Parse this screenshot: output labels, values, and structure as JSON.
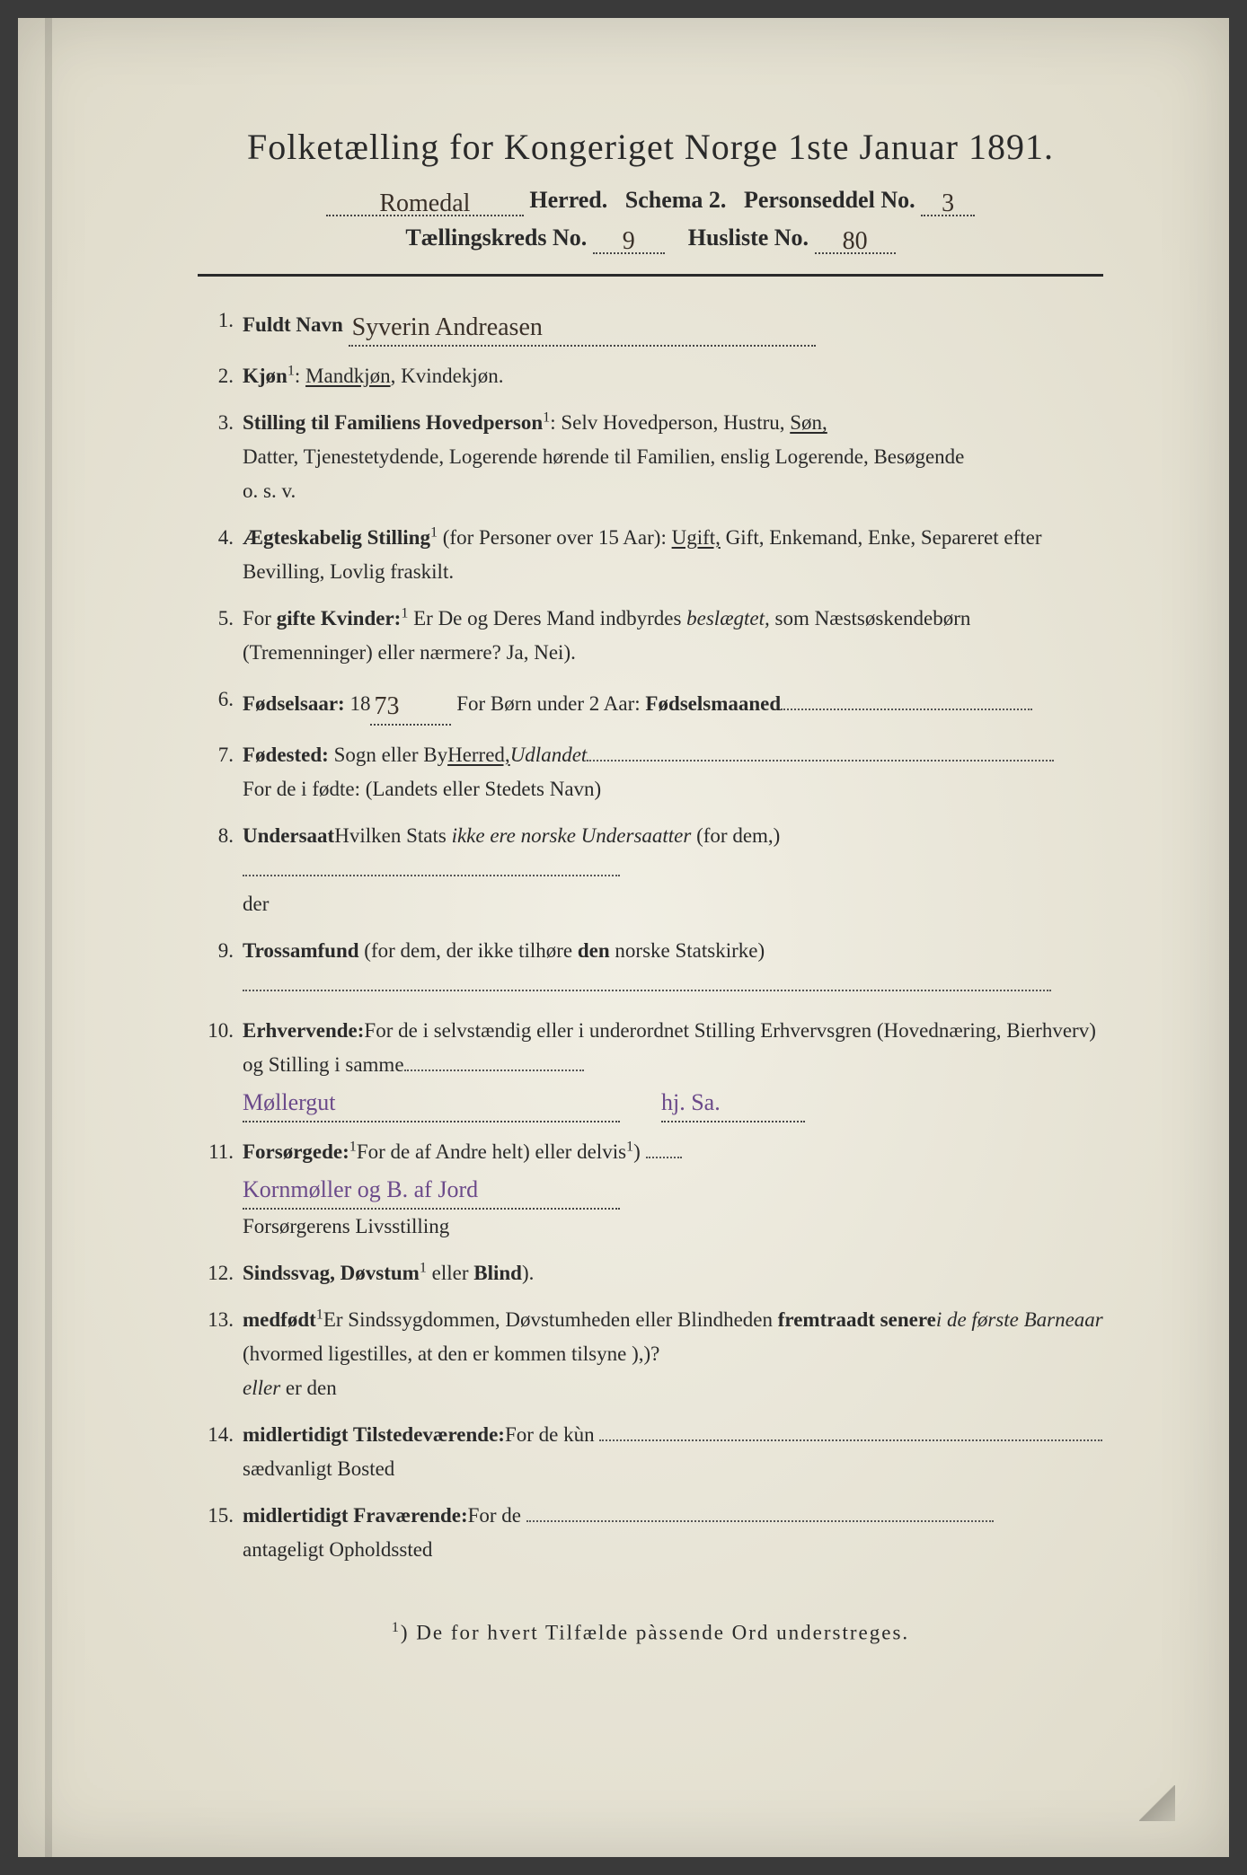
{
  "colors": {
    "paper_bg": "#e8e4d4",
    "text": "#2a2a2a",
    "handwriting": "#3a3028",
    "handwriting_purple": "#6b4a8a",
    "dots": "#555555"
  },
  "title": "Folketælling for Kongeriget Norge 1ste Januar 1891.",
  "header": {
    "herred_hw": "Romedal",
    "herred_label": "Herred.",
    "schema": "Schema 2.",
    "person_label": "Personseddel No.",
    "person_hw": "3",
    "kreds_label": "Tællingskreds No.",
    "kreds_hw": "9",
    "husliste_label": "Husliste No.",
    "husliste_hw": "80"
  },
  "items": [
    {
      "n": "1.",
      "label": "Fuldt Navn",
      "hw": "Syverin Andreasen"
    },
    {
      "n": "2.",
      "label": "Kjøn",
      "sup": "1",
      "text": ": ",
      "opts": "Mandkjøn, Kvindekjøn.",
      "underline_word": "Mandkjøn"
    },
    {
      "n": "3.",
      "label": "Stilling til Familiens Hovedperson",
      "sup": "1",
      "text": ": Selv Hovedperson, Hustru, ",
      "underline_word": "Søn,",
      "cont": "Datter, Tjenestetydende, Logerende hørende til Familien, enslig Logerende, Besøgende",
      "cont2": "o. s. v."
    },
    {
      "n": "4.",
      "label": "Ægteskabelig Stilling",
      "sup": "1",
      "text": " (for Personer over 15 Aar): ",
      "underline_word": "Ugift,",
      "rest": " Gift, Enkemand, Enke, Separeret efter Bevilling, Lovlig fraskilt."
    },
    {
      "n": "5.",
      "pre": "For ",
      "label": "gifte Kvinder:",
      "text": " Er De og Deres Mand indbyrdes ",
      "italic": "beslægtet,",
      "rest": " som Næstsøskendebørn (Tremenninger) eller nærmere?  Ja, Nei",
      "sup": "1",
      "tail": ")."
    },
    {
      "n": "6.",
      "label": "Fødselsaar:",
      "hw": "18",
      "hw2": "73",
      "mid": "   For Børn under 2 Aar: ",
      "label2": "Fødselsmaaned",
      "trail": 280
    },
    {
      "n": "7.",
      "label": "Fødested:",
      "underline_word": "Herred,",
      "text": " Sogn eller By",
      "trail": 520,
      "cont": "For de i ",
      "italic": "Udlandet",
      "cont2": " fødte: (Landets eller Stedets Navn)"
    },
    {
      "n": "8.",
      "text": "Hvilken Stats ",
      "label": "Undersaat",
      "rest": " (for dem,",
      "cont": "der ",
      "italic": "ikke ere norske Undersaatter",
      "tail": ")",
      "trail": 420
    },
    {
      "n": "9.",
      "label": "Trossamfund",
      "text": "  (for   dem,  der  ikke  tilhøre   ",
      "bold2": "den",
      "rest": "   norske   Statskirke)",
      "trail": 900
    },
    {
      "n": "10.",
      "text": "For de i selvstændig eller i underordnet Stilling ",
      "label": "Erhvervende:",
      "rest": " Erhvervsgren (Hovednæring, Bierhverv) og Stilling i samme",
      "trail": 200,
      "hw_purple": "Møllergut",
      "hw_purple2": "hj. Sa."
    },
    {
      "n": "11.",
      "text": "For de af Andre helt",
      "sup": "1",
      "mid": ") eller delvis",
      "sup2": "1",
      "rest": ") ",
      "label": "Forsørgede:",
      "cont": "Forsørgerens Livsstilling",
      "hw_purple": "Kornmøller og B. af Jord",
      "trail": 40
    },
    {
      "n": "12.",
      "label": "Sindssvag, Døvstum",
      "mid": " eller ",
      "label2": "Blind",
      "sup": "1",
      "tail": ")."
    },
    {
      "n": "13.",
      "text": "Er Sindssygdommen, Døvstumheden eller Blindheden ",
      "label": "medfødt",
      "rest": " (hvormed ligestilles, at den er kommen tilsyne ",
      "italic": "i de første Barneaar",
      "rest2": "),",
      "cont": "eller",
      "cont_rest": " er den ",
      "label2": "fremtraadt senere",
      "sup": "1",
      "tail": ")?"
    },
    {
      "n": "14.",
      "text": "For de kùn ",
      "label": "midlertidigt Tilstedeværende:",
      "cont": "sædvanligt Bosted",
      "trail": 560
    },
    {
      "n": "15.",
      "text": "For de ",
      "label": "midlertidigt Fraværende:",
      "cont": "antageligt Opholdssted",
      "trail": 520
    }
  ],
  "footnote": {
    "sup": "1",
    "text": ") De for hvert Tilfælde pàssende Ord understreges."
  }
}
